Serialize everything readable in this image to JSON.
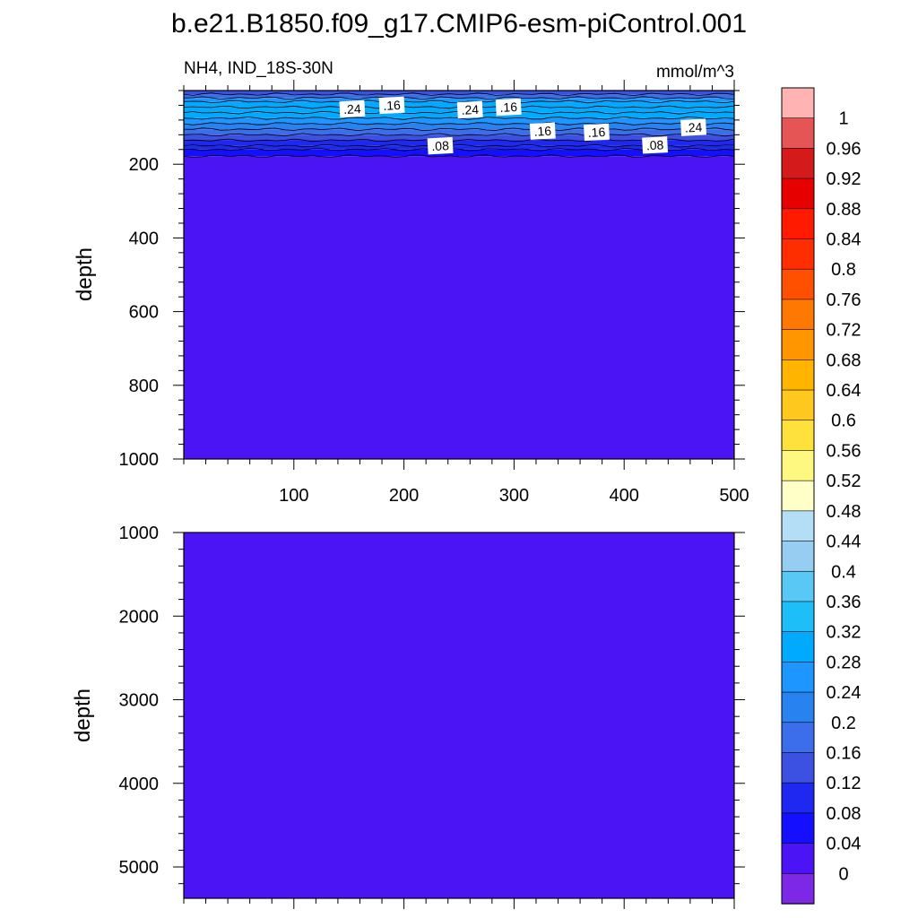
{
  "chart_data": [
    {
      "type": "heatmap",
      "panel": "upper",
      "title": "b.e21.B1850.f09_g17.CMIP6-esm-piControl.001",
      "subtitle_left": "NH4, IND_18S-30N",
      "subtitle_right": "mmol/m^3",
      "xlabel": "",
      "ylabel": "depth",
      "xlim": [
        0,
        500
      ],
      "ylim": [
        1000,
        0
      ],
      "y_reversed": true,
      "xticks": [
        100,
        200,
        300,
        400,
        500
      ],
      "xtick_labels": [
        "100",
        "200",
        "300",
        "400",
        "500"
      ],
      "yticks": [
        200,
        400,
        600,
        800,
        1000
      ],
      "ytick_labels": [
        "200",
        "400",
        "600",
        "800",
        "1000"
      ],
      "depth_layers": [
        {
          "top": 0,
          "bottom": 10,
          "value": 0.12
        },
        {
          "top": 10,
          "bottom": 20,
          "value": 0.16
        },
        {
          "top": 20,
          "bottom": 30,
          "value": 0.24
        },
        {
          "top": 30,
          "bottom": 45,
          "value": 0.28
        },
        {
          "top": 45,
          "bottom": 60,
          "value": 0.3
        },
        {
          "top": 60,
          "bottom": 75,
          "value": 0.3
        },
        {
          "top": 75,
          "bottom": 90,
          "value": 0.26
        },
        {
          "top": 90,
          "bottom": 105,
          "value": 0.22
        },
        {
          "top": 105,
          "bottom": 120,
          "value": 0.18
        },
        {
          "top": 120,
          "bottom": 135,
          "value": 0.14
        },
        {
          "top": 135,
          "bottom": 150,
          "value": 0.1
        },
        {
          "top": 150,
          "bottom": 160,
          "value": 0.09
        },
        {
          "top": 160,
          "bottom": 178,
          "value": 0.06
        },
        {
          "top": 178,
          "bottom": 1000,
          "value": 0.02
        }
      ],
      "contour_levels": [
        0.04,
        0.08,
        0.12,
        0.16,
        0.2,
        0.24,
        0.28
      ],
      "contour_labels": [
        {
          "text": ".24",
          "x": 153,
          "depth": 50
        },
        {
          "text": ".16",
          "x": 189,
          "depth": 40
        },
        {
          "text": ".24",
          "x": 260,
          "depth": 52
        },
        {
          "text": ".16",
          "x": 295,
          "depth": 45
        },
        {
          "text": ".08",
          "x": 233,
          "depth": 150
        },
        {
          "text": ".16",
          "x": 326,
          "depth": 110
        },
        {
          "text": ".16",
          "x": 375,
          "depth": 113
        },
        {
          "text": ".08",
          "x": 428,
          "depth": 148
        },
        {
          "text": ".24",
          "x": 463,
          "depth": 100
        }
      ]
    },
    {
      "type": "heatmap",
      "panel": "lower",
      "xlabel": "",
      "ylabel": "depth",
      "xlim": [
        0,
        500
      ],
      "ylim": [
        5375,
        1000
      ],
      "y_reversed": true,
      "yticks": [
        1000,
        2000,
        3000,
        4000,
        5000
      ],
      "ytick_labels": [
        "1000",
        "2000",
        "3000",
        "4000",
        "5000"
      ],
      "uniform_value": 0.02
    }
  ],
  "colorbar": {
    "labels": [
      "1",
      "0.96",
      "0.92",
      "0.88",
      "0.84",
      "0.8",
      "0.76",
      "0.72",
      "0.68",
      "0.64",
      "0.6",
      "0.56",
      "0.52",
      "0.48",
      "0.44",
      "0.4",
      "0.36",
      "0.32",
      "0.28",
      "0.24",
      "0.2",
      "0.16",
      "0.12",
      "0.08",
      "0.04",
      "0"
    ],
    "colors_top_to_bottom": [
      "#ffb3b3",
      "#e65555",
      "#d41a1a",
      "#e60000",
      "#ff1a00",
      "#ff2e00",
      "#ff5000",
      "#ff7800",
      "#ff9600",
      "#ffb400",
      "#ffc81e",
      "#ffe13c",
      "#fff880",
      "#ffffc8",
      "#b4ddf6",
      "#96cdf0",
      "#5ac8f5",
      "#1ebef8",
      "#00aaff",
      "#1e96ff",
      "#2882f0",
      "#3c6eeb",
      "#3c50e1",
      "#1e28f0",
      "#1410ff",
      "#4b14f5",
      "#7d28e6"
    ]
  }
}
